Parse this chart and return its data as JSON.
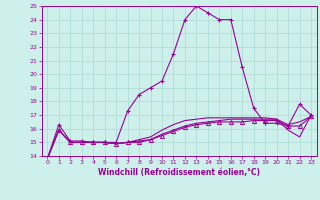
{
  "xlabel": "Windchill (Refroidissement éolien,°C)",
  "background_color": "#cef0ea",
  "grid_color": "#aad8d4",
  "line_color": "#990099",
  "hours": [
    0,
    1,
    2,
    3,
    4,
    5,
    6,
    7,
    8,
    9,
    10,
    11,
    12,
    13,
    14,
    15,
    16,
    17,
    18,
    19,
    20,
    21,
    22,
    23
  ],
  "line1": [
    13.8,
    16.3,
    15.1,
    15.1,
    15.0,
    15.0,
    15.0,
    17.3,
    18.5,
    19.0,
    19.5,
    21.5,
    24.0,
    25.0,
    24.5,
    24.0,
    24.0,
    20.5,
    17.5,
    16.4,
    16.4,
    16.2,
    17.8,
    17.0
  ],
  "line2": [
    13.8,
    15.9,
    15.0,
    15.0,
    15.0,
    15.0,
    14.9,
    15.0,
    15.1,
    15.2,
    15.6,
    15.9,
    16.2,
    16.4,
    16.5,
    16.6,
    16.7,
    16.7,
    16.7,
    16.7,
    16.7,
    16.3,
    16.5,
    16.9
  ],
  "line3": [
    13.8,
    15.9,
    15.0,
    15.0,
    15.0,
    15.0,
    14.9,
    15.0,
    15.2,
    15.4,
    15.9,
    16.3,
    16.6,
    16.7,
    16.8,
    16.8,
    16.8,
    16.8,
    16.8,
    16.8,
    16.7,
    15.9,
    15.4,
    17.0
  ],
  "line4": [
    13.8,
    15.9,
    15.0,
    15.0,
    15.0,
    15.0,
    14.9,
    15.0,
    15.0,
    15.2,
    15.5,
    15.8,
    16.1,
    16.3,
    16.4,
    16.5,
    16.5,
    16.5,
    16.6,
    16.6,
    16.6,
    16.2,
    16.2,
    16.9
  ],
  "ylim": [
    14,
    25
  ],
  "yticks": [
    14,
    15,
    16,
    17,
    18,
    19,
    20,
    21,
    22,
    23,
    24,
    25
  ],
  "xlim": [
    -0.5,
    23.5
  ]
}
